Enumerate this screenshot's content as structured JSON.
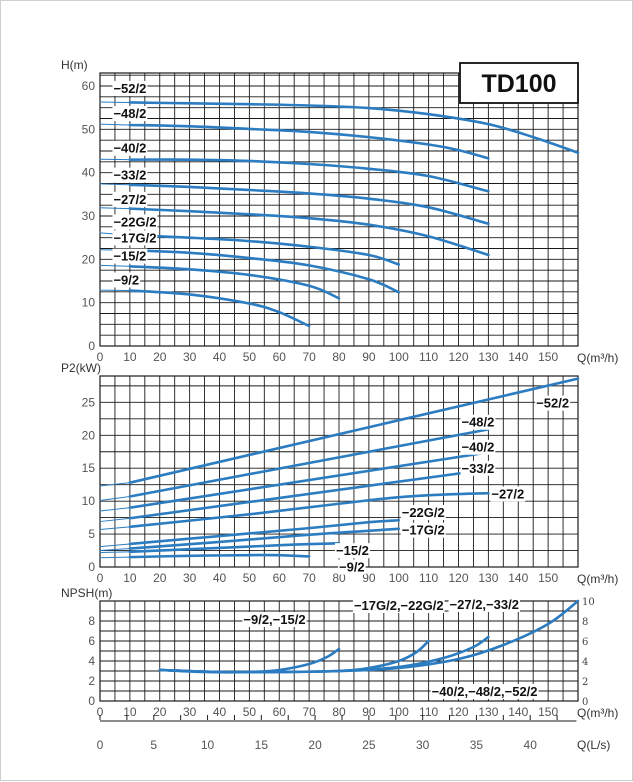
{
  "colors": {
    "curve": "#2b7cc0",
    "grid": "#1a1a1a",
    "text": "#111111",
    "tick": "#555555"
  },
  "chart_data": [
    {
      "type": "line",
      "id": "head",
      "title": "TD100",
      "ylabel": "H(m)",
      "xlabel": "Q(m³/h)",
      "xlim": [
        0,
        160
      ],
      "ylim": [
        0,
        63
      ],
      "xticks": [
        0,
        10,
        20,
        30,
        40,
        50,
        60,
        70,
        80,
        90,
        100,
        110,
        120,
        130,
        140,
        150
      ],
      "xtick_labels": [
        "0",
        "10",
        "20",
        "30",
        "40",
        "50",
        "60",
        "70",
        "80",
        "90",
        "100",
        "110",
        "120",
        "130",
        "140",
        "150"
      ],
      "yticks": [
        0,
        10,
        20,
        30,
        40,
        50,
        60
      ],
      "ytick_labels": [
        "0",
        "10",
        "20",
        "30",
        "40",
        "50",
        "60"
      ],
      "series": [
        {
          "name": "-52/2",
          "label": "−52/2",
          "label_at": [
            4.5,
            58.4
          ],
          "thin": [
            [
              0,
              56.3
            ],
            [
              10,
              56.2
            ]
          ],
          "points": [
            [
              10,
              56.2
            ],
            [
              30,
              56.0
            ],
            [
              50,
              55.8
            ],
            [
              70,
              55.5
            ],
            [
              90,
              54.9
            ],
            [
              110,
              53.5
            ],
            [
              130,
              51.2
            ],
            [
              145,
              48.2
            ],
            [
              160,
              44.6
            ]
          ]
        },
        {
          "name": "-48/2",
          "label": "−48/2",
          "label_at": [
            4.5,
            52.6
          ],
          "thin": [
            [
              0,
              51.2
            ],
            [
              10,
              51.0
            ]
          ],
          "points": [
            [
              10,
              51.0
            ],
            [
              30,
              50.7
            ],
            [
              50,
              50.1
            ],
            [
              70,
              49.4
            ],
            [
              90,
              48.2
            ],
            [
              110,
              46.5
            ],
            [
              120,
              45.2
            ],
            [
              130,
              43.3
            ]
          ]
        },
        {
          "name": "-40/2",
          "label": "−40/2",
          "label_at": [
            4.5,
            44.6
          ],
          "thin": [
            [
              0,
              43.1
            ],
            [
              10,
              43.0
            ]
          ],
          "points": [
            [
              10,
              43.0
            ],
            [
              30,
              43.0
            ],
            [
              50,
              42.7
            ],
            [
              70,
              42.0
            ],
            [
              90,
              40.9
            ],
            [
              110,
              39.2
            ],
            [
              130,
              35.7
            ]
          ]
        },
        {
          "name": "-33/2",
          "label": "−33/2",
          "label_at": [
            4.5,
            38.4
          ],
          "thin": [
            [
              0,
              37.4
            ],
            [
              10,
              37.2
            ]
          ],
          "points": [
            [
              10,
              37.2
            ],
            [
              30,
              36.7
            ],
            [
              50,
              36.0
            ],
            [
              70,
              35.2
            ],
            [
              90,
              34.0
            ],
            [
              110,
              32.0
            ],
            [
              130,
              28.2
            ]
          ]
        },
        {
          "name": "-27/2",
          "label": "−27/2",
          "label_at": [
            4.5,
            32.8
          ],
          "thin": [
            [
              0,
              31.9
            ],
            [
              10,
              31.7
            ]
          ],
          "points": [
            [
              10,
              31.7
            ],
            [
              30,
              31.1
            ],
            [
              50,
              30.4
            ],
            [
              70,
              29.5
            ],
            [
              90,
              28.0
            ],
            [
              110,
              25.3
            ],
            [
              130,
              21.0
            ]
          ]
        },
        {
          "name": "-22G/2",
          "label": "−22G/2",
          "label_at": [
            4.5,
            27.6
          ],
          "thin": [
            [
              0,
              26.1
            ],
            [
              10,
              25.6
            ]
          ],
          "points": [
            [
              10,
              25.6
            ],
            [
              30,
              25.0
            ],
            [
              50,
              24.2
            ],
            [
              70,
              22.9
            ],
            [
              90,
              21.0
            ],
            [
              100,
              18.8
            ]
          ]
        },
        {
          "name": "-17G/2",
          "label": "−17G/2",
          "label_at": [
            4.5,
            23.9
          ],
          "thin": [
            [
              0,
              22.2
            ],
            [
              10,
              22.1
            ]
          ],
          "points": [
            [
              10,
              22.1
            ],
            [
              30,
              21.5
            ],
            [
              50,
              20.3
            ],
            [
              70,
              18.6
            ],
            [
              90,
              15.4
            ],
            [
              100,
              12.4
            ]
          ]
        },
        {
          "name": "-15/2",
          "label": "−15/2",
          "label_at": [
            4.5,
            19.7
          ],
          "thin": [
            [
              0,
              18.6
            ],
            [
              10,
              18.4
            ]
          ],
          "points": [
            [
              10,
              18.4
            ],
            [
              30,
              17.7
            ],
            [
              50,
              16.4
            ],
            [
              70,
              13.9
            ],
            [
              80,
              11.0
            ]
          ]
        },
        {
          "name": "-9/2",
          "label": "−9/2",
          "label_at": [
            4.5,
            14.2
          ],
          "thin": [
            [
              0,
              12.9
            ],
            [
              10,
              12.8
            ]
          ],
          "points": [
            [
              10,
              12.8
            ],
            [
              30,
              11.9
            ],
            [
              50,
              9.8
            ],
            [
              60,
              7.8
            ],
            [
              70,
              4.6
            ]
          ]
        }
      ]
    },
    {
      "type": "line",
      "id": "power",
      "title": "",
      "ylabel": "P2(kW)",
      "xlabel": "Q(m³/h)",
      "xlim": [
        0,
        160
      ],
      "ylim": [
        0,
        29
      ],
      "xticks": [
        0,
        10,
        20,
        30,
        40,
        50,
        60,
        70,
        80,
        90,
        100,
        110,
        120,
        130,
        140,
        150
      ],
      "xtick_labels": [
        "0",
        "10",
        "20",
        "30",
        "40",
        "50",
        "60",
        "70",
        "80",
        "90",
        "100",
        "110",
        "120",
        "130",
        "140",
        "150"
      ],
      "yticks": [
        0,
        5,
        10,
        15,
        20,
        25
      ],
      "ytick_labels": [
        "0",
        "5",
        "10",
        "15",
        "20",
        "25"
      ],
      "series": [
        {
          "name": "-52/2",
          "label": "−52/2",
          "label_at": [
            146,
            24.2
          ],
          "thin": [
            [
              0,
              12.3
            ],
            [
              10,
              12.8
            ]
          ],
          "points": [
            [
              10,
              12.8
            ],
            [
              160,
              28.6
            ]
          ]
        },
        {
          "name": "-48/2",
          "label": "−48/2",
          "label_at": [
            121,
            21.3
          ],
          "thin": [
            [
              0,
              10.1
            ],
            [
              10,
              10.7
            ]
          ],
          "points": [
            [
              10,
              10.7
            ],
            [
              130,
              20.9
            ]
          ]
        },
        {
          "name": "-40/2",
          "label": "−40/2",
          "label_at": [
            121,
            17.5
          ],
          "thin": [
            [
              0,
              8.5
            ],
            [
              10,
              9.0
            ]
          ],
          "points": [
            [
              10,
              9.0
            ],
            [
              130,
              17.4
            ]
          ]
        },
        {
          "name": "-33/2",
          "label": "−33/2",
          "label_at": [
            121,
            14.3
          ],
          "thin": [
            [
              0,
              6.9
            ],
            [
              10,
              7.4
            ]
          ],
          "points": [
            [
              10,
              7.4
            ],
            [
              130,
              14.8
            ]
          ]
        },
        {
          "name": "-27/2",
          "label": "−27/2",
          "label_at": [
            131,
            10.4
          ],
          "thin": [
            [
              0,
              5.7
            ],
            [
              10,
              6.1
            ]
          ],
          "points": [
            [
              10,
              6.1
            ],
            [
              50,
              8.0
            ],
            [
              80,
              9.6
            ],
            [
              100,
              10.6
            ],
            [
              115,
              11.0
            ],
            [
              130,
              11.2
            ]
          ]
        },
        {
          "name": "-22G/2",
          "label": "−22G/2",
          "label_at": [
            101,
            7.6
          ],
          "thin": [
            [
              0,
              3.1
            ],
            [
              10,
              3.5
            ]
          ],
          "points": [
            [
              10,
              3.5
            ],
            [
              40,
              4.7
            ],
            [
              70,
              5.9
            ],
            [
              90,
              6.8
            ],
            [
              100,
              7.1
            ]
          ]
        },
        {
          "name": "-17G/2",
          "label": "−17G/2",
          "label_at": [
            101,
            4.9
          ],
          "thin": [
            [
              0,
              2.5
            ],
            [
              10,
              2.8
            ]
          ],
          "points": [
            [
              10,
              2.8
            ],
            [
              40,
              3.8
            ],
            [
              70,
              4.9
            ],
            [
              90,
              5.5
            ],
            [
              100,
              5.8
            ]
          ]
        },
        {
          "name": "-15/2",
          "label": "−15/2",
          "label_at": [
            79,
            1.8
          ],
          "thin": [
            [
              0,
              2.2
            ],
            [
              10,
              2.3
            ]
          ],
          "points": [
            [
              10,
              2.3
            ],
            [
              30,
              2.7
            ],
            [
              50,
              3.1
            ],
            [
              65,
              3.4
            ],
            [
              80,
              3.6
            ]
          ]
        },
        {
          "name": "-9/2",
          "label": "−9/2",
          "label_at": [
            80,
            -0.7
          ],
          "thin": [
            [
              0,
              1.4
            ],
            [
              10,
              1.5
            ]
          ],
          "points": [
            [
              10,
              1.5
            ],
            [
              30,
              1.7
            ],
            [
              50,
              1.8
            ],
            [
              60,
              1.8
            ],
            [
              70,
              1.6
            ]
          ]
        }
      ]
    },
    {
      "type": "line",
      "id": "npsh",
      "title": "",
      "ylabel": "NPSH(m)",
      "xlabel": "Q(m³/h)",
      "x2label": "Q(L/s)",
      "xlim": [
        0,
        160
      ],
      "ylim": [
        0,
        10
      ],
      "xticks": [
        0,
        10,
        20,
        30,
        40,
        50,
        60,
        70,
        80,
        90,
        100,
        110,
        120,
        130,
        140,
        150
      ],
      "xtick_labels": [
        "0",
        "10",
        "20",
        "30",
        "40",
        "50",
        "60",
        "70",
        "80",
        "90",
        "100",
        "110",
        "120",
        "130",
        "140",
        "150"
      ],
      "yticks": [
        0,
        2,
        4,
        6,
        8
      ],
      "ytick_labels": [
        "0",
        "2",
        "4",
        "6",
        "8"
      ],
      "y2ticks": [
        0,
        2,
        4,
        6,
        8,
        10
      ],
      "y2tick_labels": [
        "0",
        "2",
        "4",
        "6",
        "8",
        "10"
      ],
      "x2ticks": [
        0,
        5,
        10,
        15,
        20,
        25,
        30,
        35,
        40
      ],
      "x2tick_labels": [
        "0",
        "5",
        "10",
        "15",
        "20",
        "25",
        "30",
        "35",
        "40"
      ],
      "series": [
        {
          "name": "-9/2,-15/2",
          "label": "−9/2,−15/2",
          "label_at": [
            48,
            7.7
          ],
          "points": [
            [
              20,
              3.1
            ],
            [
              35,
              2.9
            ],
            [
              50,
              2.9
            ],
            [
              60,
              3.1
            ],
            [
              70,
              3.7
            ],
            [
              76,
              4.4
            ],
            [
              80,
              5.2
            ]
          ]
        },
        {
          "name": "-17G/2,-22G/2",
          "label": "−17G/2,−22G/2",
          "label_at": [
            85,
            9.1
          ],
          "points": [
            [
              20,
              3.1
            ],
            [
              40,
              2.9
            ],
            [
              60,
              2.9
            ],
            [
              80,
              3.0
            ],
            [
              90,
              3.3
            ],
            [
              100,
              4.0
            ],
            [
              106,
              4.9
            ],
            [
              110,
              6.0
            ]
          ]
        },
        {
          "name": "-27/2,-33/2",
          "label": "−27/2,−33/2",
          "label_at": [
            117,
            9.2
          ],
          "points": [
            [
              20,
              3.1
            ],
            [
              40,
              2.9
            ],
            [
              60,
              2.9
            ],
            [
              80,
              3.0
            ],
            [
              100,
              3.4
            ],
            [
              115,
              4.3
            ],
            [
              125,
              5.4
            ],
            [
              130,
              6.4
            ]
          ]
        },
        {
          "name": "-40/2,-48/2,-52/2",
          "label": "−40/2,−48/2,−52/2",
          "label_at": [
            111,
            0.5
          ],
          "points": [
            [
              20,
              3.1
            ],
            [
              40,
              2.9
            ],
            [
              60,
              2.9
            ],
            [
              80,
              3.0
            ],
            [
              100,
              3.3
            ],
            [
              120,
              4.2
            ],
            [
              135,
              5.6
            ],
            [
              150,
              7.7
            ],
            [
              160,
              10.0
            ]
          ]
        }
      ]
    }
  ]
}
